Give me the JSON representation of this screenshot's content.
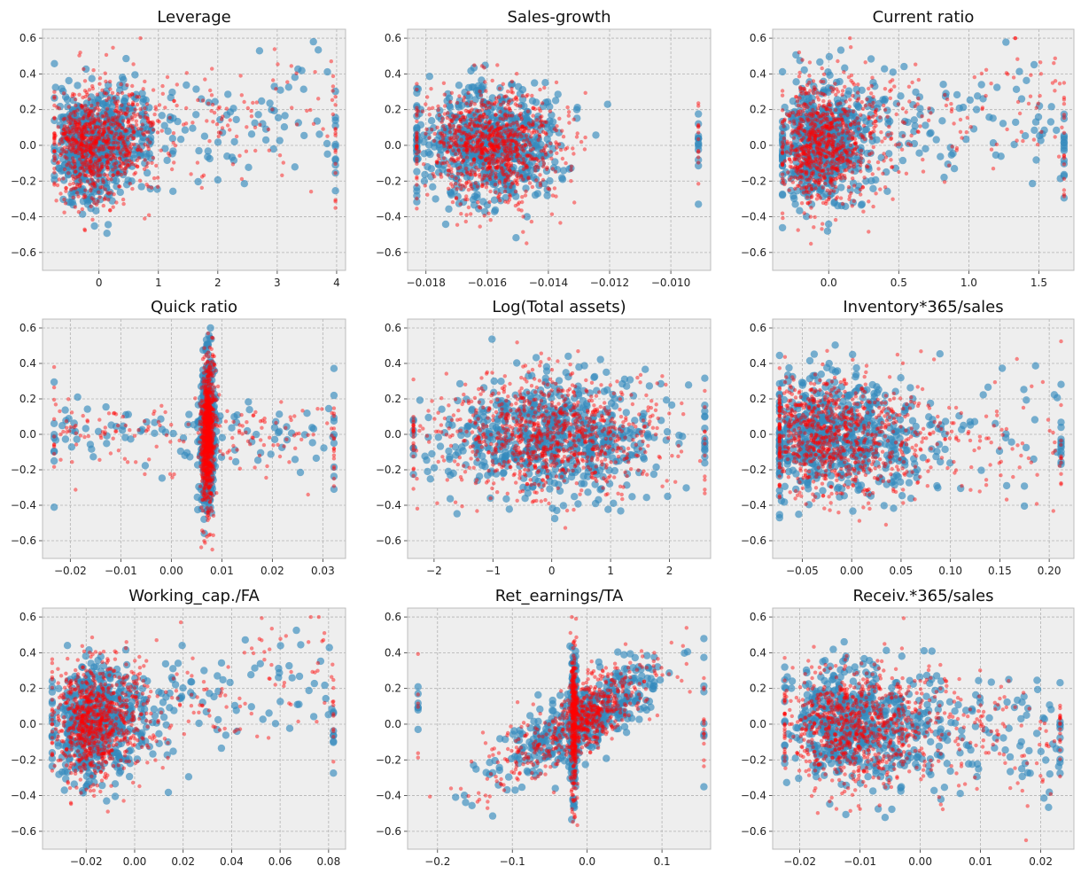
{
  "chart_data": [
    {
      "type": "scatter",
      "title": "Leverage",
      "xlim": [
        -0.95,
        4.15
      ],
      "ylim": [
        -0.7,
        0.65
      ],
      "xticks": [
        0,
        1,
        2,
        3,
        4
      ],
      "xtick_labels": [
        "0",
        "1",
        "2",
        "3",
        "4"
      ],
      "yticks": [
        -0.6,
        -0.4,
        -0.2,
        0.0,
        0.2,
        0.4,
        0.6
      ],
      "ytick_labels": [
        "−0.6",
        "−0.4",
        "−0.2",
        "0.0",
        "0.2",
        "0.4",
        "0.6"
      ],
      "dist": {
        "mode": "pos",
        "xc": -0.3,
        "xsc": 0.35,
        "yc": 0.0,
        "slope": 0.1,
        "ys": 0.16,
        "xmin": -0.75,
        "xmax": 3.98
      }
    },
    {
      "type": "scatter",
      "title": "Sales-growth",
      "xlim": [
        -0.0186,
        -0.0087
      ],
      "ylim": [
        -0.7,
        0.65
      ],
      "xticks": [
        -0.018,
        -0.016,
        -0.014,
        -0.012,
        -0.01
      ],
      "xtick_labels": [
        "−0.018",
        "−0.016",
        "−0.014",
        "−0.012",
        "−0.010"
      ],
      "yticks": [
        -0.6,
        -0.4,
        -0.2,
        0.0,
        0.2,
        0.4,
        0.6
      ],
      "ytick_labels": [
        "−0.6",
        "−0.4",
        "−0.2",
        "0.0",
        "0.2",
        "0.4",
        "0.6"
      ],
      "dist": {
        "mode": "sym",
        "xc": -0.0158,
        "xsc": 0.0011,
        "yc": 0.0,
        "slope": 0,
        "ys": 0.16,
        "xmin": -0.0183,
        "xmax": -0.0091
      }
    },
    {
      "type": "scatter",
      "title": "Current ratio",
      "xlim": [
        -0.4,
        1.75
      ],
      "ylim": [
        -0.7,
        0.65
      ],
      "xticks": [
        0.0,
        0.5,
        1.0,
        1.5
      ],
      "xtick_labels": [
        "0.0",
        "0.5",
        "1.0",
        "1.5"
      ],
      "yticks": [
        -0.6,
        -0.4,
        -0.2,
        0.0,
        0.2,
        0.4,
        0.6
      ],
      "ytick_labels": [
        "−0.6",
        "−0.4",
        "−0.2",
        "0.0",
        "0.2",
        "0.4",
        "0.6"
      ],
      "dist": {
        "mode": "pos",
        "xc": -0.15,
        "xsc": 0.15,
        "yc": 0.0,
        "slope": 0.25,
        "ys": 0.17,
        "xmin": -0.33,
        "xmax": 1.68
      }
    },
    {
      "type": "scatter",
      "title": "Quick ratio",
      "xlim": [
        -0.0255,
        0.0345
      ],
      "ylim": [
        -0.7,
        0.65
      ],
      "xticks": [
        -0.02,
        -0.01,
        0.0,
        0.01,
        0.02,
        0.03
      ],
      "xtick_labels": [
        "−0.02",
        "−0.01",
        "0.00",
        "0.01",
        "0.02",
        "0.03"
      ],
      "yticks": [
        -0.6,
        -0.4,
        -0.2,
        0.0,
        0.2,
        0.4,
        0.6
      ],
      "ytick_labels": [
        "−0.6",
        "−0.4",
        "−0.2",
        "0.0",
        "0.2",
        "0.4",
        "0.6"
      ],
      "dist": {
        "mode": "spike",
        "xc": 0.0072,
        "xsc": 0.0007,
        "yc": 0.0,
        "slope": 30,
        "ys": 0.2,
        "xmin": -0.0232,
        "xmax": 0.0322
      }
    },
    {
      "type": "scatter",
      "title": "Log(Total assets)",
      "xlim": [
        -2.45,
        2.7
      ],
      "ylim": [
        -0.7,
        0.65
      ],
      "xticks": [
        -2,
        -1,
        0,
        1,
        2
      ],
      "xtick_labels": [
        "−2",
        "−1",
        "0",
        "1",
        "2"
      ],
      "yticks": [
        -0.6,
        -0.4,
        -0.2,
        0.0,
        0.2,
        0.4,
        0.6
      ],
      "ytick_labels": [
        "−0.6",
        "−0.4",
        "−0.2",
        "0.0",
        "0.2",
        "0.4",
        "0.6"
      ],
      "dist": {
        "mode": "sym",
        "xc": 0.0,
        "xsc": 0.9,
        "yc": 0.0,
        "slope": 0,
        "ys": 0.17,
        "xmin": -2.35,
        "xmax": 2.6
      }
    },
    {
      "type": "scatter",
      "title": "Inventory*365/sales",
      "xlim": [
        -0.08,
        0.225
      ],
      "ylim": [
        -0.7,
        0.65
      ],
      "xticks": [
        -0.05,
        0.0,
        0.05,
        0.1,
        0.15,
        0.2
      ],
      "xtick_labels": [
        "−0.05",
        "0.00",
        "0.05",
        "0.10",
        "0.15",
        "0.20"
      ],
      "yticks": [
        -0.6,
        -0.4,
        -0.2,
        0.0,
        0.2,
        0.4,
        0.6
      ],
      "ytick_labels": [
        "−0.6",
        "−0.4",
        "−0.2",
        "0.0",
        "0.2",
        "0.4",
        "0.6"
      ],
      "dist": {
        "mode": "pos",
        "xc": -0.045,
        "xsc": 0.035,
        "yc": 0.0,
        "slope": -0.5,
        "ys": 0.17,
        "xmin": -0.073,
        "xmax": 0.212
      }
    },
    {
      "type": "scatter",
      "title": "Working_cap./FA",
      "xlim": [
        -0.038,
        0.087
      ],
      "ylim": [
        -0.7,
        0.65
      ],
      "xticks": [
        -0.02,
        0.0,
        0.02,
        0.04,
        0.06,
        0.08
      ],
      "xtick_labels": [
        "−0.02",
        "0.00",
        "0.02",
        "0.04",
        "0.06",
        "0.08"
      ],
      "yticks": [
        -0.6,
        -0.4,
        -0.2,
        0.0,
        0.2,
        0.4,
        0.6
      ],
      "ytick_labels": [
        "−0.6",
        "−0.4",
        "−0.2",
        "0.0",
        "0.2",
        "0.4",
        "0.6"
      ],
      "dist": {
        "mode": "pos",
        "xc": -0.022,
        "xsc": 0.008,
        "yc": 0.0,
        "slope": 5,
        "ys": 0.16,
        "xmin": -0.034,
        "xmax": 0.082
      }
    },
    {
      "type": "scatter",
      "title": "Ret_earnings/TA",
      "xlim": [
        -0.24,
        0.165
      ],
      "ylim": [
        -0.7,
        0.65
      ],
      "xticks": [
        -0.2,
        -0.1,
        0.0,
        0.1
      ],
      "xtick_labels": [
        "−0.2",
        "−0.1",
        "0.0",
        "0.1"
      ],
      "yticks": [
        -0.6,
        -0.4,
        -0.2,
        0.0,
        0.2,
        0.4,
        0.6
      ],
      "ytick_labels": [
        "−0.6",
        "−0.4",
        "−0.2",
        "0.0",
        "0.2",
        "0.4",
        "0.6"
      ],
      "dist": {
        "mode": "ret",
        "xc": -0.018,
        "xsc": 0.04,
        "yc": 0.0,
        "slope": 2.5,
        "ys": 0.1,
        "xmin": -0.226,
        "xmax": 0.156
      }
    },
    {
      "type": "scatter",
      "title": "Receiv.*365/sales",
      "xlim": [
        -0.0245,
        0.0255
      ],
      "ylim": [
        -0.7,
        0.65
      ],
      "xticks": [
        -0.02,
        -0.01,
        0.0,
        0.01,
        0.02
      ],
      "xtick_labels": [
        "−0.02",
        "−0.01",
        "0.00",
        "0.01",
        "0.02"
      ],
      "yticks": [
        -0.6,
        -0.4,
        -0.2,
        0.0,
        0.2,
        0.4,
        0.6
      ],
      "ytick_labels": [
        "−0.6",
        "−0.4",
        "−0.2",
        "0.0",
        "0.2",
        "0.4",
        "0.6"
      ],
      "dist": {
        "mode": "pos",
        "xc": -0.015,
        "xsc": 0.006,
        "yc": 0.0,
        "slope": -3,
        "ys": 0.17,
        "xmin": -0.0225,
        "xmax": 0.0232
      }
    }
  ],
  "series_colors": {
    "blue": "#348ABD",
    "red": "#FF0000",
    "axes_bg": "#EEEEEE",
    "grid": "#B2B2B2"
  },
  "grid": true
}
